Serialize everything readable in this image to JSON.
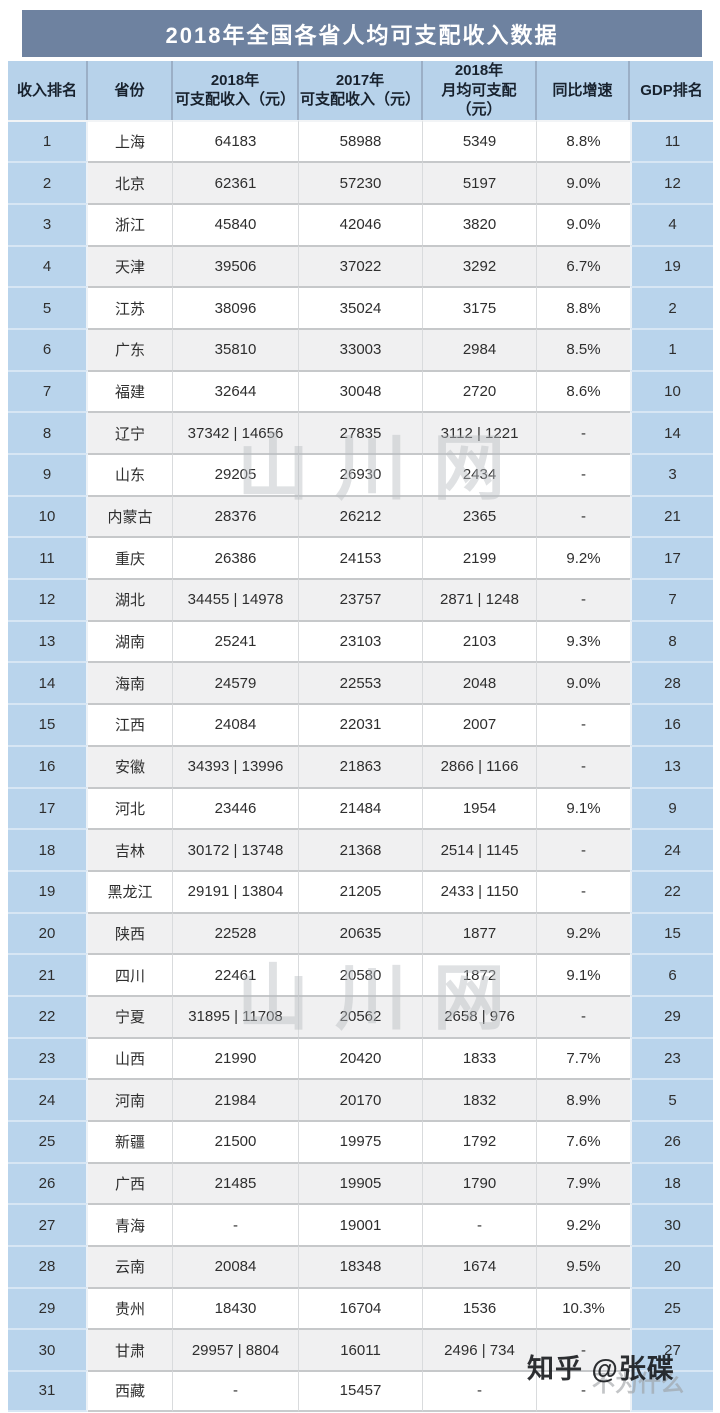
{
  "chart_data": {
    "type": "table",
    "title": "2018年全国各省人均可支配收入数据",
    "columns": [
      {
        "id": "rank",
        "label": "收入排名"
      },
      {
        "id": "province",
        "label": "省份"
      },
      {
        "id": "income2018",
        "label": "2018年\n可支配收入（元）"
      },
      {
        "id": "income2017",
        "label": "2017年\n可支配收入（元）"
      },
      {
        "id": "monthly2018",
        "label": "2018年\n月均可支配（元）"
      },
      {
        "id": "growth",
        "label": "同比增速"
      },
      {
        "id": "gdp",
        "label": "GDP排名"
      }
    ],
    "rows": [
      [
        "1",
        "上海",
        "64183",
        "58988",
        "5349",
        "8.8%",
        "11"
      ],
      [
        "2",
        "北京",
        "62361",
        "57230",
        "5197",
        "9.0%",
        "12"
      ],
      [
        "3",
        "浙江",
        "45840",
        "42046",
        "3820",
        "9.0%",
        "4"
      ],
      [
        "4",
        "天津",
        "39506",
        "37022",
        "3292",
        "6.7%",
        "19"
      ],
      [
        "5",
        "江苏",
        "38096",
        "35024",
        "3175",
        "8.8%",
        "2"
      ],
      [
        "6",
        "广东",
        "35810",
        "33003",
        "2984",
        "8.5%",
        "1"
      ],
      [
        "7",
        "福建",
        "32644",
        "30048",
        "2720",
        "8.6%",
        "10"
      ],
      [
        "8",
        "辽宁",
        "37342 | 14656",
        "27835",
        "3112 | 1221",
        "-",
        "14"
      ],
      [
        "9",
        "山东",
        "29205",
        "26930",
        "2434",
        "-",
        "3"
      ],
      [
        "10",
        "内蒙古",
        "28376",
        "26212",
        "2365",
        "-",
        "21"
      ],
      [
        "11",
        "重庆",
        "26386",
        "24153",
        "2199",
        "9.2%",
        "17"
      ],
      [
        "12",
        "湖北",
        "34455 | 14978",
        "23757",
        "2871 | 1248",
        "-",
        "7"
      ],
      [
        "13",
        "湖南",
        "25241",
        "23103",
        "2103",
        "9.3%",
        "8"
      ],
      [
        "14",
        "海南",
        "24579",
        "22553",
        "2048",
        "9.0%",
        "28"
      ],
      [
        "15",
        "江西",
        "24084",
        "22031",
        "2007",
        "-",
        "16"
      ],
      [
        "16",
        "安徽",
        "34393 | 13996",
        "21863",
        "2866 | 1166",
        "-",
        "13"
      ],
      [
        "17",
        "河北",
        "23446",
        "21484",
        "1954",
        "9.1%",
        "9"
      ],
      [
        "18",
        "吉林",
        "30172 | 13748",
        "21368",
        "2514 | 1145",
        "-",
        "24"
      ],
      [
        "19",
        "黑龙江",
        "29191 | 13804",
        "21205",
        "2433 | 1150",
        "-",
        "22"
      ],
      [
        "20",
        "陕西",
        "22528",
        "20635",
        "1877",
        "9.2%",
        "15"
      ],
      [
        "21",
        "四川",
        "22461",
        "20580",
        "1872",
        "9.1%",
        "6"
      ],
      [
        "22",
        "宁夏",
        "31895 | 11708",
        "20562",
        "2658 | 976",
        "-",
        "29"
      ],
      [
        "23",
        "山西",
        "21990",
        "20420",
        "1833",
        "7.7%",
        "23"
      ],
      [
        "24",
        "河南",
        "21984",
        "20170",
        "1832",
        "8.9%",
        "5"
      ],
      [
        "25",
        "新疆",
        "21500",
        "19975",
        "1792",
        "7.6%",
        "26"
      ],
      [
        "26",
        "广西",
        "21485",
        "19905",
        "1790",
        "7.9%",
        "18"
      ],
      [
        "27",
        "青海",
        "-",
        "19001",
        "-",
        "9.2%",
        "30"
      ],
      [
        "28",
        "云南",
        "20084",
        "18348",
        "1674",
        "9.5%",
        "20"
      ],
      [
        "29",
        "贵州",
        "18430",
        "16704",
        "1536",
        "10.3%",
        "25"
      ],
      [
        "30",
        "甘肃",
        "29957 | 8804",
        "16011",
        "2496 | 734",
        "-",
        "27"
      ],
      [
        "31",
        "西藏",
        "-",
        "15457",
        "-",
        "-",
        ""
      ]
    ]
  },
  "watermarks": {
    "site": "山川网",
    "zhihu": "知乎 @张碟",
    "zhihu_faint": "不为什么"
  },
  "colors": {
    "title_bg": "#6e82a0",
    "header_bg": "#b7d2ea",
    "side_col_bg": "#b9d4ec",
    "stripe_bg": "#f0f0f1"
  }
}
